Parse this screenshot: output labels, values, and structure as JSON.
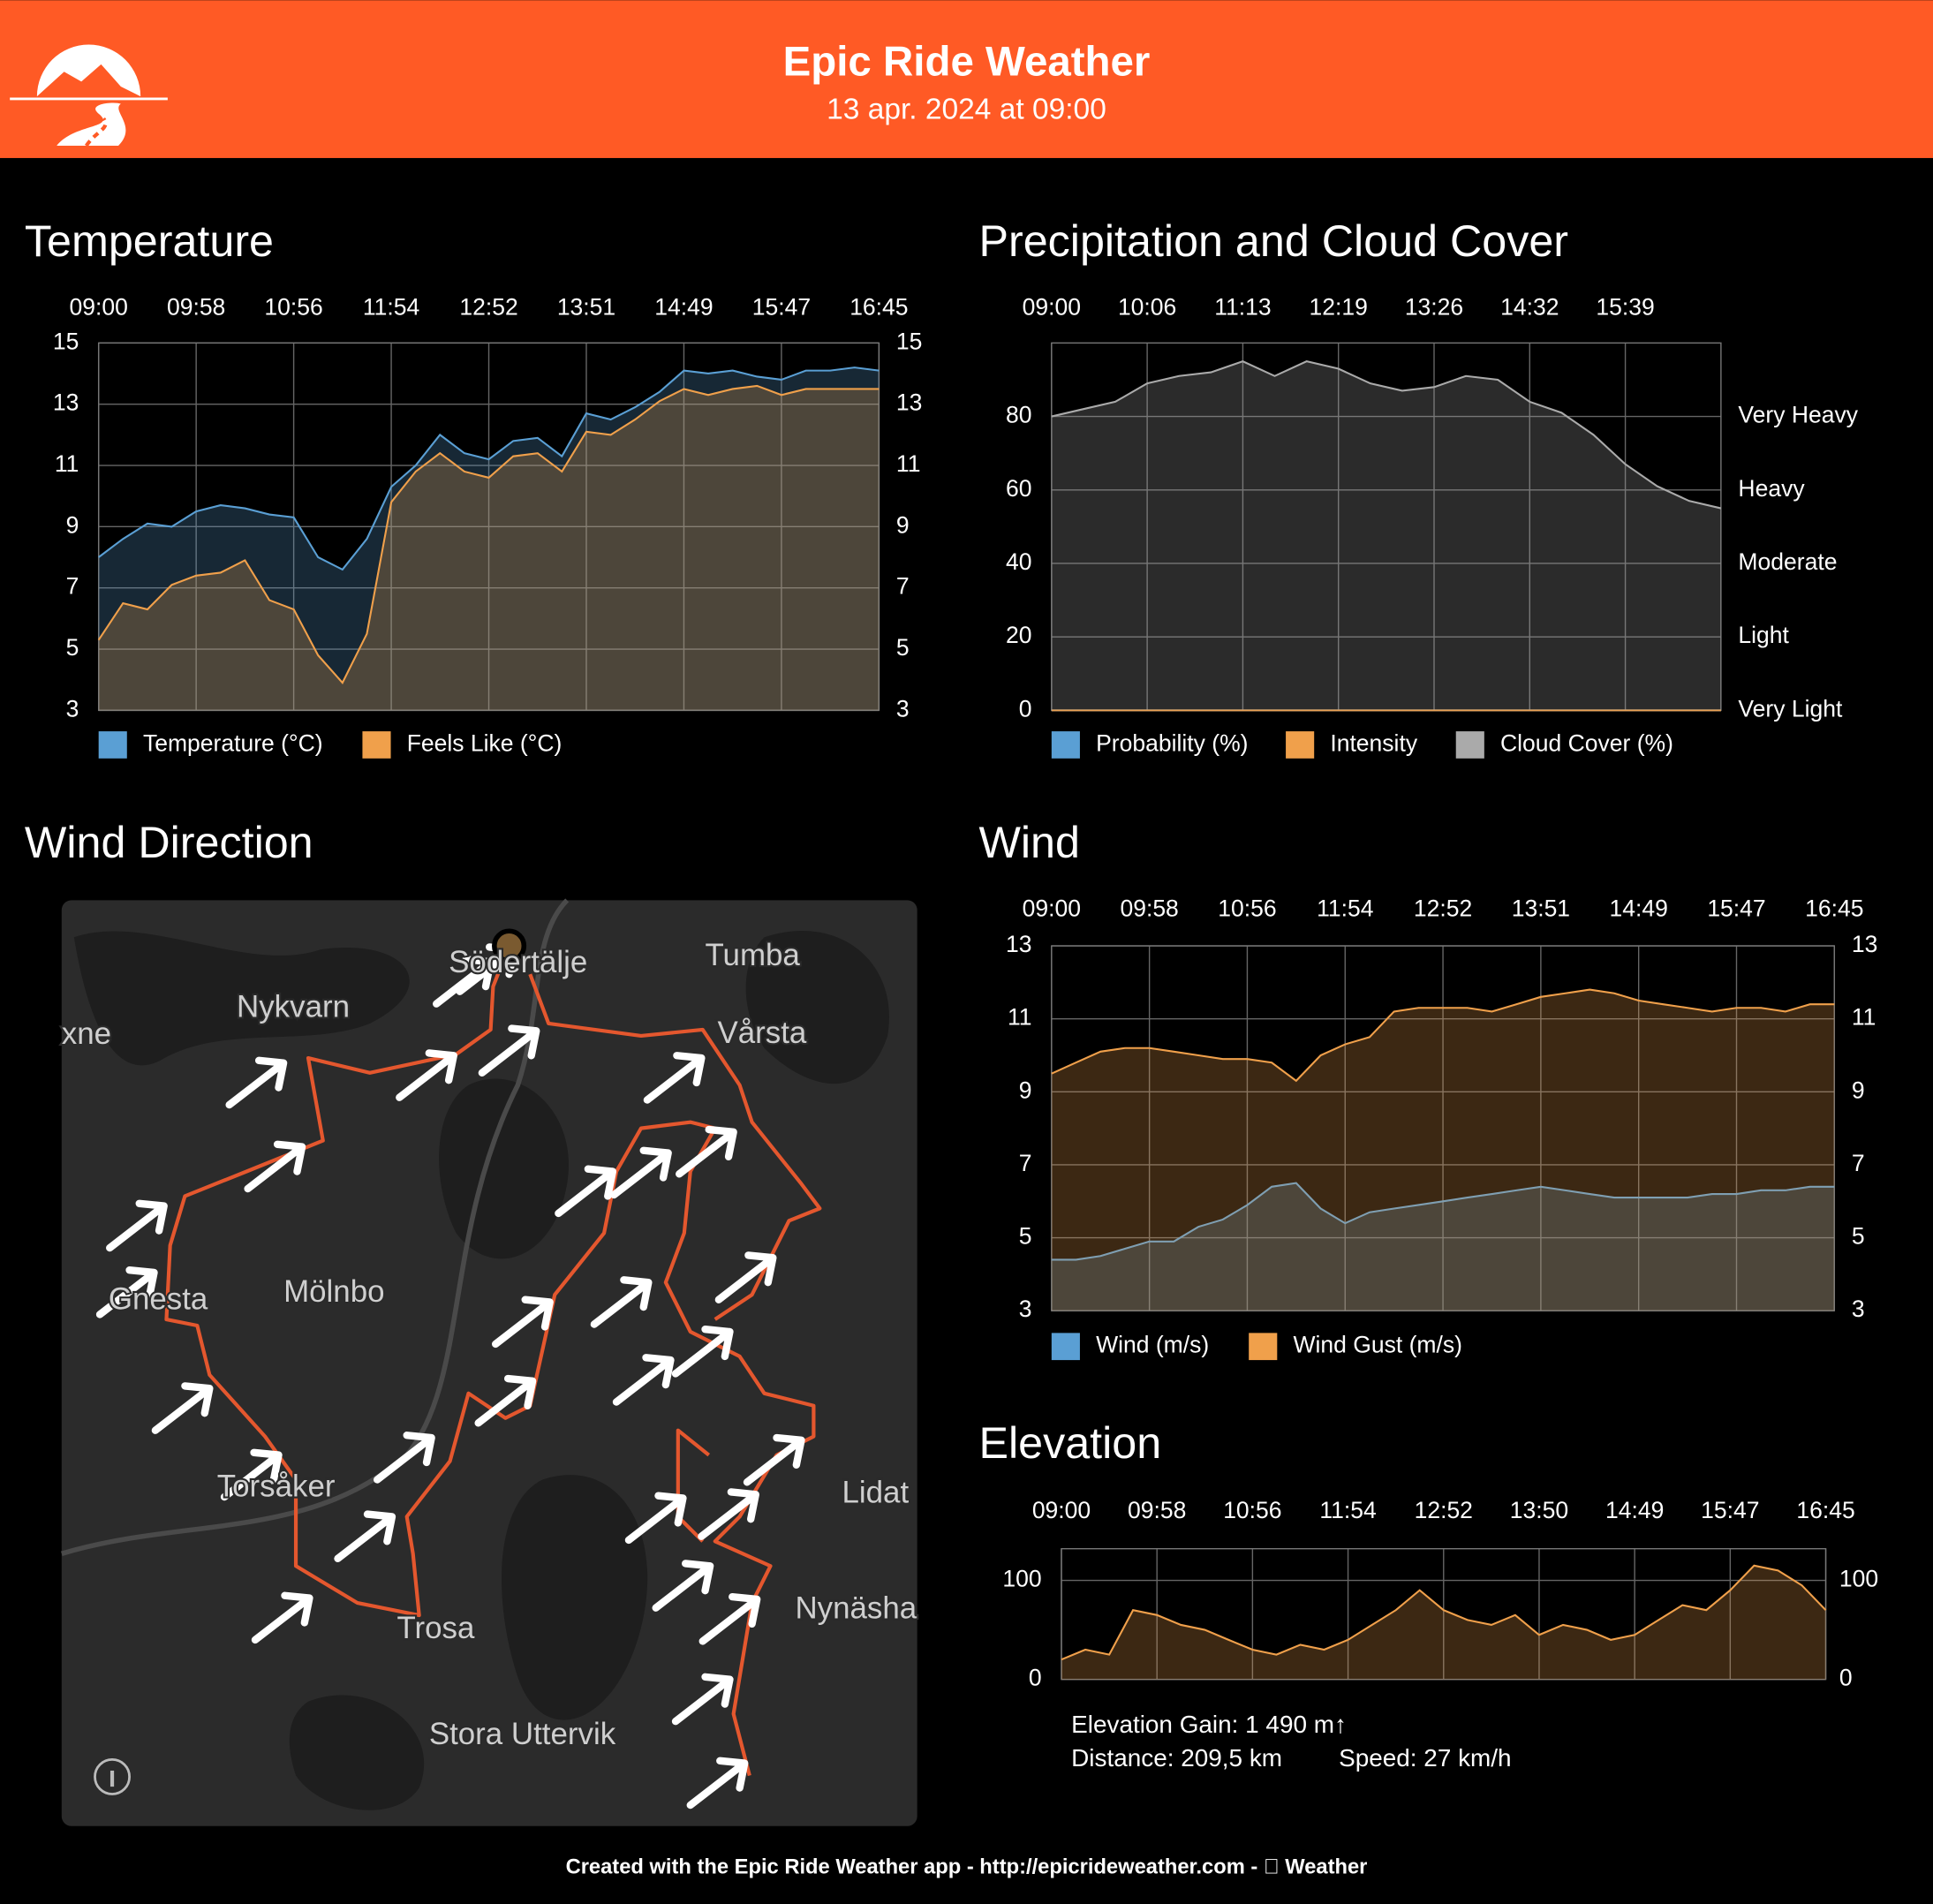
{
  "header": {
    "title": "Epic Ride Weather",
    "subtitle": "13 apr. 2024 at 09:00"
  },
  "chart_data": [
    {
      "type": "area",
      "title": "Temperature",
      "categories": [
        "09:00",
        null,
        null,
        null,
        "09:58",
        null,
        null,
        null,
        "10:56",
        null,
        null,
        null,
        "11:54",
        null,
        null,
        null,
        "12:52",
        null,
        null,
        null,
        "13:51",
        null,
        null,
        null,
        "14:49",
        null,
        null,
        null,
        "15:47",
        null,
        null,
        null,
        "16:45"
      ],
      "series": [
        {
          "name": "Temperature (°C)",
          "color": "#5a9fd4",
          "values": [
            8.0,
            8.6,
            9.1,
            9.0,
            9.5,
            9.7,
            9.6,
            9.4,
            9.3,
            8.0,
            7.6,
            8.6,
            10.3,
            11.0,
            12.0,
            11.4,
            11.2,
            11.8,
            11.9,
            11.3,
            12.7,
            12.5,
            12.9,
            13.4,
            14.1,
            14.0,
            14.1,
            13.9,
            13.8,
            14.1,
            14.1,
            14.2,
            14.1
          ]
        },
        {
          "name": "Feels Like (°C)",
          "color": "#f0a04b",
          "values": [
            5.3,
            6.5,
            6.3,
            7.1,
            7.4,
            7.5,
            7.9,
            6.6,
            6.3,
            4.8,
            3.9,
            5.5,
            9.8,
            10.8,
            11.4,
            10.8,
            10.6,
            11.3,
            11.4,
            10.8,
            12.1,
            12.0,
            12.5,
            13.1,
            13.5,
            13.3,
            13.5,
            13.6,
            13.3,
            13.5,
            13.5,
            13.5,
            13.5
          ]
        }
      ],
      "ylim": [
        3,
        15
      ],
      "yticks": [
        3,
        5,
        7,
        9,
        11,
        13,
        15
      ],
      "y2lim": [
        3,
        15
      ],
      "y2ticks": [
        3,
        5,
        7,
        9,
        11,
        13,
        15
      ],
      "grid": true
    },
    {
      "type": "area",
      "title": "Precipitation and Cloud Cover",
      "categories": [
        "09:00",
        null,
        null,
        "10:06",
        null,
        null,
        "11:13",
        null,
        null,
        "12:19",
        null,
        null,
        "13:26",
        null,
        null,
        "14:32",
        null,
        null,
        "15:39",
        null,
        null,
        null
      ],
      "series": [
        {
          "name": "Probability (%)",
          "color": "#5a9fd4",
          "values": [
            0,
            0,
            0,
            0,
            0,
            0,
            0,
            0,
            0,
            0,
            0,
            0,
            0,
            0,
            0,
            0,
            0,
            0,
            0,
            0,
            0,
            0
          ]
        },
        {
          "name": "Intensity",
          "color": "#f0a04b",
          "values": [
            0,
            0,
            0,
            0,
            0,
            0,
            0,
            0,
            0,
            0,
            0,
            0,
            0,
            0,
            0,
            0,
            0,
            0,
            0,
            0,
            0,
            0
          ]
        },
        {
          "name": "Cloud Cover (%)",
          "color": "#aaaaaa",
          "values": [
            80,
            82,
            84,
            89,
            91,
            92,
            95,
            91,
            95,
            93,
            89,
            87,
            88,
            91,
            90,
            84,
            81,
            75,
            67,
            61,
            57,
            55
          ]
        }
      ],
      "ylim": [
        0,
        100
      ],
      "yticks": [
        0,
        20,
        40,
        60,
        80
      ],
      "y2lim": [
        0,
        100
      ],
      "y2ticks": [
        {
          "value": 0,
          "label": "Very Light"
        },
        {
          "value": 20,
          "label": "Light"
        },
        {
          "value": 40,
          "label": "Moderate"
        },
        {
          "value": 60,
          "label": "Heavy"
        },
        {
          "value": 80,
          "label": "Very Heavy"
        }
      ],
      "grid": true
    },
    {
      "type": "area",
      "title": "Wind",
      "categories": [
        "09:00",
        null,
        null,
        null,
        "09:58",
        null,
        null,
        null,
        "10:56",
        null,
        null,
        null,
        "11:54",
        null,
        null,
        null,
        "12:52",
        null,
        null,
        null,
        "13:51",
        null,
        null,
        null,
        "14:49",
        null,
        null,
        null,
        "15:47",
        null,
        null,
        null,
        "16:45"
      ],
      "series": [
        {
          "name": "Wind (m/s)",
          "color": "#5a9fd4",
          "values": [
            4.4,
            4.4,
            4.5,
            4.7,
            4.9,
            4.9,
            5.3,
            5.5,
            5.9,
            6.4,
            6.5,
            5.8,
            5.4,
            5.7,
            5.8,
            5.9,
            6.0,
            6.1,
            6.2,
            6.3,
            6.4,
            6.3,
            6.2,
            6.1,
            6.1,
            6.1,
            6.1,
            6.2,
            6.2,
            6.3,
            6.3,
            6.4,
            6.4
          ]
        },
        {
          "name": "Wind Gust (m/s)",
          "color": "#f0a04b",
          "values": [
            9.5,
            9.8,
            10.1,
            10.2,
            10.2,
            10.1,
            10.0,
            9.9,
            9.9,
            9.8,
            9.3,
            10.0,
            10.3,
            10.5,
            11.2,
            11.3,
            11.3,
            11.3,
            11.2,
            11.4,
            11.6,
            11.7,
            11.8,
            11.7,
            11.5,
            11.4,
            11.3,
            11.2,
            11.3,
            11.3,
            11.2,
            11.4,
            11.4
          ]
        }
      ],
      "ylim": [
        3,
        13
      ],
      "yticks": [
        3,
        5,
        7,
        9,
        11,
        13
      ],
      "y2lim": [
        3,
        13
      ],
      "y2ticks": [
        3,
        5,
        7,
        9,
        11,
        13
      ],
      "grid": true
    },
    {
      "type": "area",
      "title": "Elevation",
      "categories": [
        "09:00",
        null,
        null,
        null,
        "09:58",
        null,
        null,
        null,
        "10:56",
        null,
        null,
        null,
        "11:54",
        null,
        null,
        null,
        "12:52",
        null,
        null,
        null,
        "13:50",
        null,
        null,
        null,
        "14:49",
        null,
        null,
        null,
        "15:47",
        null,
        null,
        null,
        "16:45"
      ],
      "series": [
        {
          "color": "#f0a04b",
          "values": [
            20,
            30,
            25,
            70,
            65,
            55,
            50,
            40,
            30,
            25,
            35,
            30,
            40,
            55,
            70,
            90,
            70,
            60,
            55,
            65,
            45,
            55,
            50,
            40,
            45,
            60,
            75,
            70,
            90,
            115,
            110,
            95,
            70
          ]
        }
      ],
      "ylim": [
        0,
        132
      ],
      "yticks": [
        0,
        100
      ],
      "y2lim": [
        0,
        132
      ],
      "y2ticks": [
        0,
        100
      ],
      "grid": true
    }
  ],
  "map": {
    "title": "Wind Direction",
    "labels": [
      "Södertälje",
      "Tumba",
      "Nykvarn",
      "Vårsta",
      "xne",
      "Gnesta",
      "Mölnbo",
      "Torsåker",
      "Trosa",
      "Stora Uttervik",
      "Lidat",
      "Nynäsha"
    ]
  },
  "stats": {
    "gain": "Elevation Gain: 1 490 m↑",
    "distance": "Distance: 209,5 km",
    "speed": "Speed: 27 km/h"
  },
  "footer": "Created with the Epic Ride Weather app - http://epicrideweather.com -  Weather"
}
